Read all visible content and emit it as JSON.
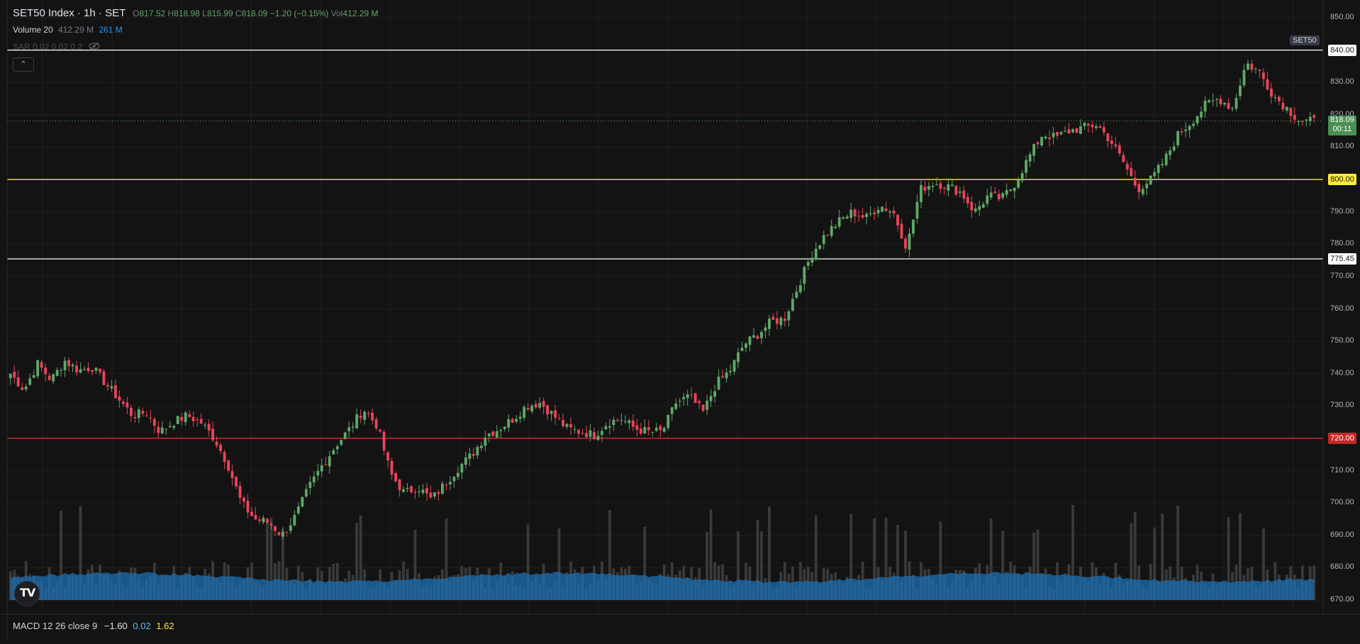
{
  "header": {
    "symbol": "SET50 Index · 1h · SET",
    "o_label": "O",
    "o_value": "817.52",
    "h_label": "H",
    "h_value": "818.98",
    "l_label": "L",
    "l_value": "815.99",
    "c_label": "C",
    "c_value": "818.09",
    "change": "−1.20 (−0.15%)",
    "vol_label": "Vol",
    "vol_value": "412.29 M"
  },
  "volume_legend": {
    "name": "Volume 20",
    "v1": "412.29 M",
    "v2": "261 M"
  },
  "sar_legend": {
    "name": "SAR 0.02 0.02 0.2"
  },
  "symbol_badge": "SET50",
  "current_price": {
    "value": "818.09",
    "countdown": "00:11"
  },
  "horizontal_lines": [
    {
      "price": 840.0,
      "label": "840.00",
      "color": "#ffffff",
      "text_color": "#131313",
      "bg": "#ffffff"
    },
    {
      "price": 800.0,
      "label": "800.00",
      "color": "#ffeb3b",
      "text_color": "#131313",
      "bg": "#ffeb3b"
    },
    {
      "price": 775.45,
      "label": "775.45",
      "color": "#ffffff",
      "text_color": "#131313",
      "bg": "#ffffff"
    },
    {
      "price": 720.0,
      "label": "720.00",
      "color": "#d0303a",
      "text_color": "#ffffff",
      "bg": "#c62828"
    }
  ],
  "macd_legend": {
    "name": "MACD 12 26 close 9",
    "v1": "−1.60",
    "v2": "0.02",
    "v3": "1.62"
  },
  "colors": {
    "up": "#5fa868",
    "down": "#e8445a",
    "volume_ma": "#1e6fb3",
    "volume_bar": "#3a3a3a",
    "grid": "#1f1f1f"
  },
  "chart_data": {
    "type": "candlestick",
    "ylim": [
      665,
      852
    ],
    "y_ticks": [
      670,
      680,
      690,
      700,
      710,
      720,
      730,
      740,
      750,
      760,
      770,
      780,
      790,
      800,
      810,
      820,
      830,
      840,
      850
    ],
    "y_tick_labels": [
      "670.00",
      "680.00",
      "690.00",
      "700.00",
      "710.00",
      "720.00",
      "730.00",
      "740.00",
      "750.00",
      "760.00",
      "770.00",
      "780.00",
      "790.00",
      "800.00",
      "810.00",
      "820.00",
      "830.00",
      "840.00",
      "850.00"
    ],
    "anchor_closes": [
      740,
      735,
      743,
      738,
      744,
      741,
      742,
      737,
      732,
      727,
      728,
      722,
      725,
      727,
      725,
      720,
      712,
      700,
      695,
      694,
      690,
      696,
      705,
      712,
      718,
      723,
      729,
      724,
      709,
      703,
      705,
      701,
      706,
      711,
      715,
      721,
      723,
      726,
      730,
      731,
      727,
      723,
      722,
      721,
      725,
      726,
      723,
      722,
      722,
      731,
      733,
      728,
      737,
      741,
      749,
      752,
      756,
      757,
      767,
      777,
      783,
      787,
      790,
      788,
      792,
      790,
      779,
      797,
      799,
      798,
      796,
      790,
      795,
      794,
      799,
      807,
      814,
      813,
      815,
      816,
      817,
      812,
      805,
      797,
      800,
      806,
      814,
      818,
      823,
      825,
      822,
      836,
      833,
      826,
      822,
      818,
      818
    ]
  }
}
